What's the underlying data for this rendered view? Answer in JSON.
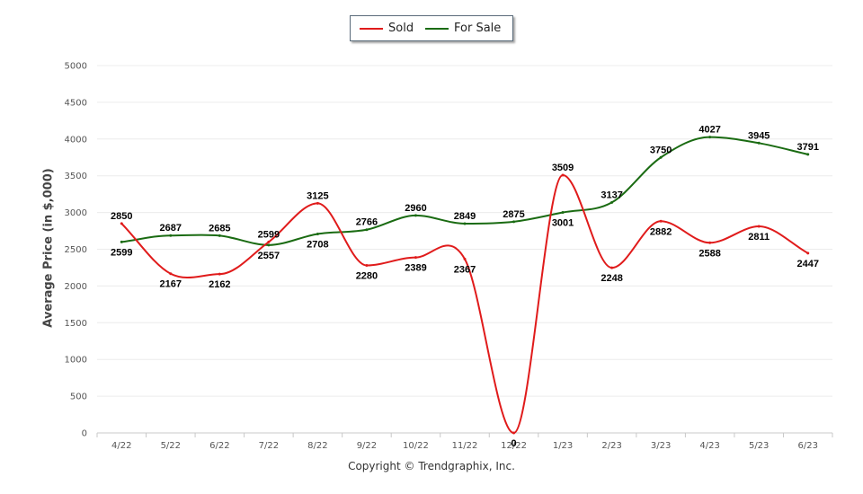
{
  "chart_data": {
    "type": "line",
    "title": "",
    "xlabel": "",
    "ylabel": "Average Price (in $,000)",
    "categories": [
      "4/22",
      "5/22",
      "6/22",
      "7/22",
      "8/22",
      "9/22",
      "10/22",
      "11/22",
      "12/22",
      "1/23",
      "2/23",
      "3/23",
      "4/23",
      "5/23",
      "6/23"
    ],
    "ylim": [
      0,
      5000
    ],
    "yticks": [
      0,
      500,
      1000,
      1500,
      2000,
      2500,
      3000,
      3500,
      4000,
      4500,
      5000
    ],
    "grid": true,
    "legend_position": "top-center",
    "series": [
      {
        "name": "Sold",
        "color": "#e01b1b",
        "values": [
          2850,
          2167,
          2162,
          2599,
          3125,
          2280,
          2389,
          2367,
          0,
          3509,
          2248,
          2882,
          2588,
          2811,
          2447
        ]
      },
      {
        "name": "For Sale",
        "color": "#1a6b12",
        "values": [
          2599,
          2687,
          2685,
          2557,
          2708,
          2766,
          2960,
          2849,
          2875,
          3001,
          3137,
          3750,
          4027,
          3945,
          3791
        ]
      }
    ]
  },
  "footer": "Copyright © Trendgraphix, Inc."
}
